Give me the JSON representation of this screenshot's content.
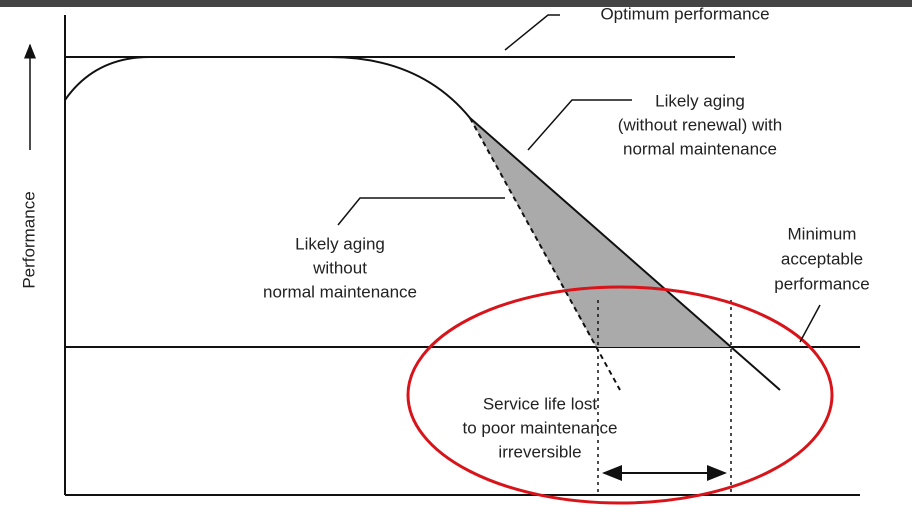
{
  "title_label": "Optimum performance",
  "y_axis_label": "Performance",
  "annotations": {
    "aging_with_maintenance": [
      "Likely aging",
      "(without renewal) with",
      "normal maintenance"
    ],
    "aging_without_maintenance": [
      "Likely aging",
      "without",
      "normal maintenance"
    ],
    "minimum": [
      "Minimum",
      "acceptable",
      "performance"
    ],
    "service_life_lost": [
      "Service life lost",
      "to poor maintenance",
      "irreversible"
    ]
  }
}
